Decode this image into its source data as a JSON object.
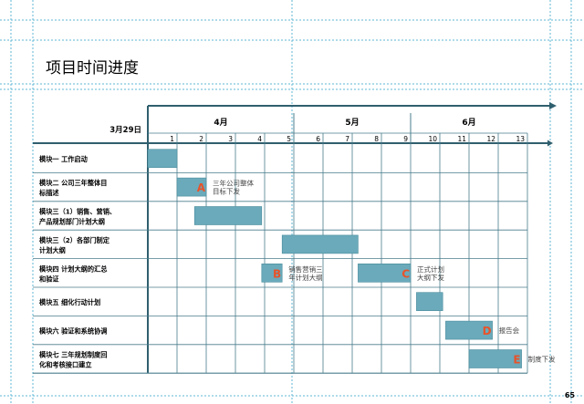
{
  "page": {
    "title": "项目时间进度",
    "page_number": "65"
  },
  "timeline": {
    "start_date": "3月29日",
    "months": [
      "4月",
      "5月",
      "6月"
    ],
    "weeks": [
      "1",
      "2",
      "3",
      "4",
      "5",
      "6",
      "7",
      "8",
      "9",
      "10",
      "11",
      "12",
      "13"
    ]
  },
  "tasks": [
    {
      "label": [
        "模块一  工作启动"
      ],
      "start": 0,
      "end": 1
    },
    {
      "label": [
        "模块二  公司三年整体目",
        "标描述"
      ],
      "start": 1,
      "end": 2
    },
    {
      "label": [
        "模块三（1）销售、营销、",
        "产品规划部门计划大纲"
      ],
      "start": 1.6,
      "end": 3.9
    },
    {
      "label": [
        "模块三（2）各部门制定",
        "计划大纲"
      ],
      "start": 4.6,
      "end": 7.2
    },
    {
      "label": [
        "模块四  计划大纲的汇总",
        "和验证"
      ],
      "start": 3.9,
      "end": 4.6,
      "start2": 7.2,
      "end2": 9.0
    },
    {
      "label": [
        "模块五  细化行动计划"
      ],
      "start": 9.2,
      "end": 10.1
    },
    {
      "label": [
        "模块六  验证和系统协调"
      ],
      "start": 10.2,
      "end": 11.8
    },
    {
      "label": [
        "模块七  三年规划制度回",
        "化和考核接口建立"
      ],
      "start": 11.0,
      "end": 12.8
    }
  ],
  "milestones": [
    {
      "letter": "A",
      "row": 1,
      "at": 2,
      "text": [
        "三年公司整体",
        "目标下发"
      ]
    },
    {
      "letter": "B",
      "row": 4,
      "at": 4.6,
      "text": [
        "销售营销三",
        "年计划大纲"
      ]
    },
    {
      "letter": "C",
      "row": 4,
      "at": 9.0,
      "text": [
        "正式计划",
        "大纲下发"
      ]
    },
    {
      "letter": "D",
      "row": 6,
      "at": 11.8,
      "text": [
        "报告会"
      ]
    },
    {
      "letter": "E",
      "row": 7,
      "at": 12.8,
      "text": [
        "制度下发"
      ]
    }
  ],
  "colors": {
    "bar": "#6aaabb",
    "bar_border": "#4b8c9c",
    "grid": "#4a7d8c",
    "milestone": "#e8532a",
    "axis": "#2f5f6e"
  }
}
